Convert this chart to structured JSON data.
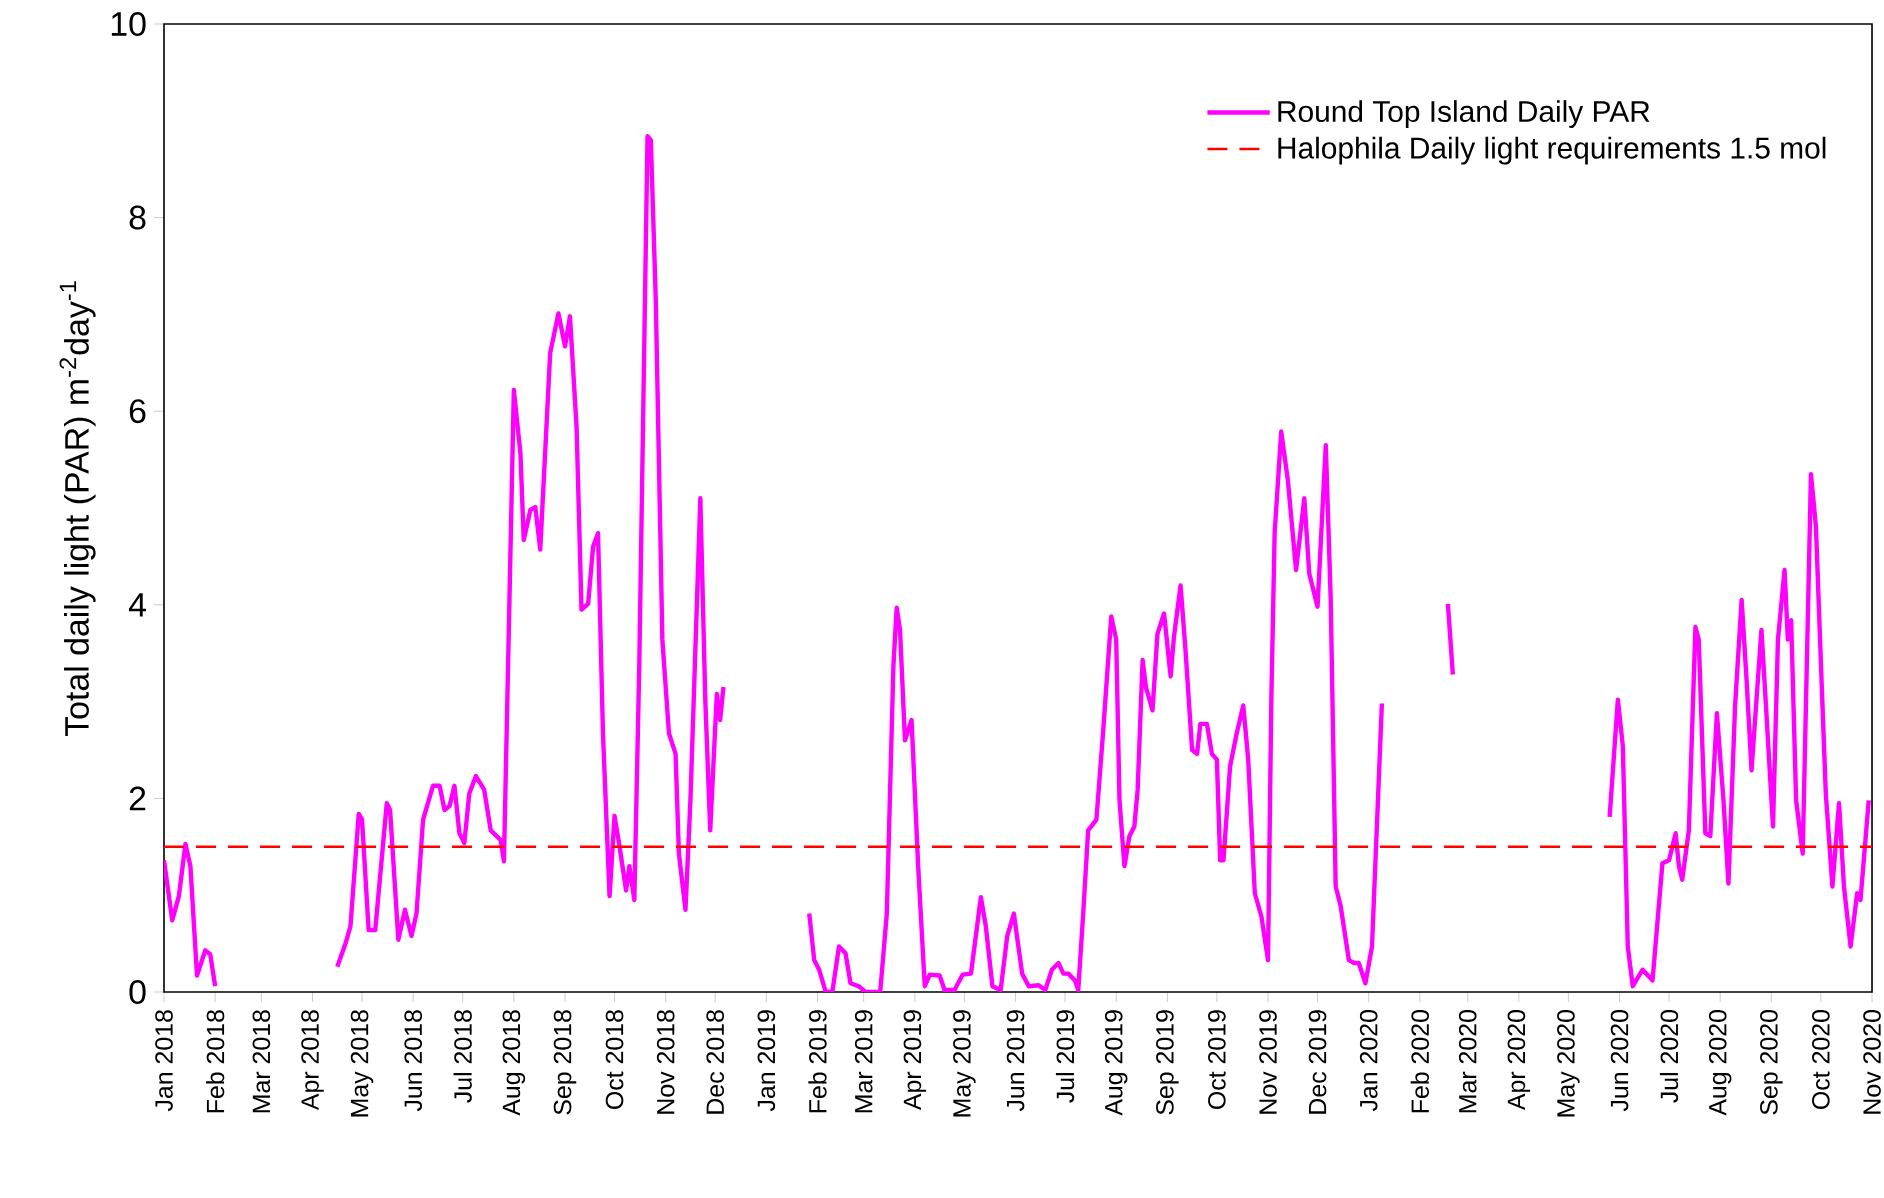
{
  "chart_data": {
    "type": "line",
    "ylabel": "Total daily light (PAR) m$^{-2}$day$^{-1}$",
    "xlim": [
      "2018-01-01",
      "2020-11-01"
    ],
    "xticks": [
      {
        "value": "2018-01-01",
        "label": "Jan 2018"
      },
      {
        "value": "2018-02-01",
        "label": "Feb 2018"
      },
      {
        "value": "2018-03-01",
        "label": "Mar 2018"
      },
      {
        "value": "2018-04-01",
        "label": "Apr 2018"
      },
      {
        "value": "2018-05-01",
        "label": "May 2018"
      },
      {
        "value": "2018-06-01",
        "label": "Jun 2018"
      },
      {
        "value": "2018-07-01",
        "label": "Jul 2018"
      },
      {
        "value": "2018-08-01",
        "label": "Aug 2018"
      },
      {
        "value": "2018-09-01",
        "label": "Sep 2018"
      },
      {
        "value": "2018-10-01",
        "label": "Oct 2018"
      },
      {
        "value": "2018-11-01",
        "label": "Nov 2018"
      },
      {
        "value": "2018-12-01",
        "label": "Dec 2018"
      },
      {
        "value": "2019-01-01",
        "label": "Jan 2019"
      },
      {
        "value": "2019-02-01",
        "label": "Feb 2019"
      },
      {
        "value": "2019-03-01",
        "label": "Mar 2019"
      },
      {
        "value": "2019-04-01",
        "label": "Apr 2019"
      },
      {
        "value": "2019-05-01",
        "label": "May 2019"
      },
      {
        "value": "2019-06-01",
        "label": "Jun 2019"
      },
      {
        "value": "2019-07-01",
        "label": "Jul 2019"
      },
      {
        "value": "2019-08-01",
        "label": "Aug 2019"
      },
      {
        "value": "2019-09-01",
        "label": "Sep 2019"
      },
      {
        "value": "2019-10-01",
        "label": "Oct 2019"
      },
      {
        "value": "2019-11-01",
        "label": "Nov 2019"
      },
      {
        "value": "2019-12-01",
        "label": "Dec 2019"
      },
      {
        "value": "2020-01-01",
        "label": "Jan 2020"
      },
      {
        "value": "2020-02-01",
        "label": "Feb 2020"
      },
      {
        "value": "2020-03-01",
        "label": "Mar 2020"
      },
      {
        "value": "2020-04-01",
        "label": "Apr 2020"
      },
      {
        "value": "2020-05-01",
        "label": "May 2020"
      },
      {
        "value": "2020-06-01",
        "label": "Jun 2020"
      },
      {
        "value": "2020-07-01",
        "label": "Jul 2020"
      },
      {
        "value": "2020-08-01",
        "label": "Aug 2020"
      },
      {
        "value": "2020-09-01",
        "label": "Sep 2020"
      },
      {
        "value": "2020-10-01",
        "label": "Oct 2020"
      },
      {
        "value": "2020-11-01",
        "label": "Nov 2020"
      }
    ],
    "ylim": [
      0,
      10
    ],
    "yticks": [
      0,
      2,
      4,
      6,
      8,
      10
    ],
    "legend": "top right",
    "marker": "none",
    "ref_lines": [
      {
        "axis": "y",
        "value": 1.5,
        "label": "Halophila Daily light requirements 1.5 mol",
        "color": "#ff0000",
        "line_style": "dashed"
      }
    ],
    "series": [
      {
        "name": "Round Top Island Daily PAR",
        "color": "#ff00ff",
        "line_style": "solid",
        "x": [
          "2018-01-01",
          "2018-01-06",
          "2018-01-10",
          "2018-01-14",
          "2018-01-17",
          "2018-01-21",
          "2018-01-26",
          "2018-01-29",
          "2018-02-01",
          "2018-03-01",
          "2018-04-16",
          "2018-04-21",
          "2018-04-24",
          "2018-04-29",
          "2018-05-01",
          "2018-05-05",
          "2018-05-09",
          "2018-05-16",
          "2018-05-18",
          "2018-05-23",
          "2018-05-27",
          "2018-05-31",
          "2018-06-03",
          "2018-06-07",
          "2018-06-13",
          "2018-06-17",
          "2018-06-20",
          "2018-06-23",
          "2018-06-26",
          "2018-06-29",
          "2018-07-02",
          "2018-07-05",
          "2018-07-09",
          "2018-07-14",
          "2018-07-18",
          "2018-07-24",
          "2018-07-26",
          "2018-08-01",
          "2018-08-05",
          "2018-08-07",
          "2018-08-11",
          "2018-08-14",
          "2018-08-17",
          "2018-08-23",
          "2018-08-28",
          "2018-09-01",
          "2018-09-04",
          "2018-09-08",
          "2018-09-11",
          "2018-09-15",
          "2018-09-18",
          "2018-09-21",
          "2018-09-24",
          "2018-09-28",
          "2018-10-01",
          "2018-10-04",
          "2018-10-08",
          "2018-10-10",
          "2018-10-13",
          "2018-10-16",
          "2018-10-21",
          "2018-10-23",
          "2018-10-26",
          "2018-10-30",
          "2018-11-03",
          "2018-11-07",
          "2018-11-09",
          "2018-11-13",
          "2018-11-16",
          "2018-11-22",
          "2018-11-25",
          "2018-11-28",
          "2018-12-02",
          "2018-12-04",
          "2018-12-06",
          "2019-01-01",
          "2019-01-27",
          "2019-01-30",
          "2019-02-02",
          "2019-02-06",
          "2019-02-10",
          "2019-02-14",
          "2019-02-18",
          "2019-02-21",
          "2019-02-26",
          "2019-03-02",
          "2019-03-11",
          "2019-03-15",
          "2019-03-19",
          "2019-03-21",
          "2019-03-23",
          "2019-03-26",
          "2019-03-30",
          "2019-04-03",
          "2019-04-07",
          "2019-04-10",
          "2019-04-16",
          "2019-04-19",
          "2019-04-25",
          "2019-04-30",
          "2019-05-05",
          "2019-05-11",
          "2019-05-14",
          "2019-05-18",
          "2019-05-23",
          "2019-05-27",
          "2019-05-31",
          "2019-06-05",
          "2019-06-09",
          "2019-06-15",
          "2019-06-19",
          "2019-06-23",
          "2019-06-27",
          "2019-06-30",
          "2019-07-03",
          "2019-07-07",
          "2019-07-09",
          "2019-07-12",
          "2019-07-15",
          "2019-07-20",
          "2019-07-24",
          "2019-07-29",
          "2019-08-01",
          "2019-08-03",
          "2019-08-06",
          "2019-08-09",
          "2019-08-12",
          "2019-08-14",
          "2019-08-17",
          "2019-08-19",
          "2019-08-23",
          "2019-08-26",
          "2019-08-30",
          "2019-09-03",
          "2019-09-05",
          "2019-09-09",
          "2019-09-12",
          "2019-09-16",
          "2019-09-19",
          "2019-09-21",
          "2019-09-25",
          "2019-09-28",
          "2019-10-01",
          "2019-10-03",
          "2019-10-05",
          "2019-10-09",
          "2019-10-13",
          "2019-10-17",
          "2019-10-20",
          "2019-10-24",
          "2019-10-28",
          "2019-11-01",
          "2019-11-03",
          "2019-11-05",
          "2019-11-09",
          "2019-11-13",
          "2019-11-18",
          "2019-11-23",
          "2019-11-26",
          "2019-12-01",
          "2019-12-06",
          "2019-12-09",
          "2019-12-12",
          "2019-12-15",
          "2019-12-20",
          "2019-12-23",
          "2019-12-26",
          "2019-12-30",
          "2020-01-03",
          "2020-01-09",
          "2020-02-01",
          "2020-02-18",
          "2020-02-21",
          "2020-04-01",
          "2020-05-26",
          "2020-05-31",
          "2020-06-03",
          "2020-06-06",
          "2020-06-09",
          "2020-06-15",
          "2020-06-21",
          "2020-06-27",
          "2020-07-01",
          "2020-07-05",
          "2020-07-07",
          "2020-07-09",
          "2020-07-13",
          "2020-07-17",
          "2020-07-19",
          "2020-07-23",
          "2020-07-26",
          "2020-07-30",
          "2020-08-03",
          "2020-08-06",
          "2020-08-10",
          "2020-08-14",
          "2020-08-17",
          "2020-08-20",
          "2020-08-23",
          "2020-08-26",
          "2020-08-29",
          "2020-09-02",
          "2020-09-05",
          "2020-09-09",
          "2020-09-11",
          "2020-09-13",
          "2020-09-16",
          "2020-09-20",
          "2020-09-25",
          "2020-09-28",
          "2020-10-02",
          "2020-10-04",
          "2020-10-08",
          "2020-10-12",
          "2020-10-15",
          "2020-10-19",
          "2020-10-23",
          "2020-10-25",
          "2020-10-27",
          "2020-10-30"
        ],
        "values": [
          1.36,
          0.74,
          0.99,
          1.53,
          1.3,
          0.17,
          0.43,
          0.39,
          0.06,
          null,
          0.26,
          0.5,
          0.68,
          1.84,
          1.78,
          0.64,
          0.64,
          1.95,
          1.88,
          0.54,
          0.85,
          0.58,
          0.81,
          1.78,
          2.13,
          2.13,
          1.88,
          1.92,
          2.13,
          1.64,
          1.54,
          2.05,
          2.23,
          2.09,
          1.67,
          1.57,
          1.35,
          6.22,
          5.56,
          4.67,
          4.98,
          5.01,
          4.57,
          6.6,
          7.01,
          6.67,
          6.98,
          5.84,
          3.95,
          4.01,
          4.6,
          4.74,
          2.67,
          0.99,
          1.82,
          1.51,
          1.05,
          1.3,
          0.95,
          3.37,
          8.84,
          8.8,
          7.15,
          3.64,
          2.67,
          2.46,
          1.43,
          0.85,
          1.98,
          5.1,
          3.02,
          1.67,
          3.08,
          2.81,
          3.15,
          null,
          0.81,
          0.33,
          0.23,
          0,
          0,
          0.47,
          0.4,
          0.09,
          0.06,
          0,
          0,
          0.81,
          3.37,
          3.97,
          3.74,
          2.6,
          2.81,
          1.3,
          0.06,
          0.18,
          0.17,
          0.02,
          0.02,
          0.18,
          0.19,
          0.98,
          0.68,
          0.06,
          0.02,
          0.58,
          0.81,
          0.19,
          0.06,
          0.07,
          0.02,
          0.23,
          0.3,
          0.19,
          0.19,
          0.12,
          0.02,
          0.81,
          1.67,
          1.78,
          2.67,
          3.88,
          3.64,
          1.98,
          1.3,
          1.61,
          1.71,
          2.09,
          3.43,
          3.15,
          2.91,
          3.7,
          3.91,
          3.26,
          3.67,
          4.2,
          3.53,
          2.5,
          2.46,
          2.77,
          2.77,
          2.46,
          2.4,
          1.36,
          1.36,
          2.33,
          2.67,
          2.96,
          2.4,
          1.02,
          0.78,
          0.33,
          3.02,
          4.74,
          5.79,
          5.29,
          4.36,
          5.1,
          4.32,
          3.98,
          5.65,
          4.05,
          1.09,
          0.89,
          0.33,
          0.3,
          0.3,
          0.09,
          0.47,
          2.98,
          null,
          4.01,
          3.28,
          null,
          1.81,
          3.02,
          2.54,
          0.47,
          0.06,
          0.23,
          0.12,
          1.33,
          1.36,
          1.64,
          1.3,
          1.16,
          1.67,
          3.77,
          3.64,
          1.64,
          1.61,
          2.88,
          1.98,
          1.12,
          2.95,
          4.05,
          3.22,
          2.29,
          3.02,
          3.74,
          2.88,
          1.71,
          3.64,
          4.36,
          3.64,
          3.84,
          1.98,
          1.43,
          5.35,
          4.81,
          2.95,
          2.05,
          1.09,
          1.95,
          1.09,
          0.47,
          1.02,
          0.95,
          1.36,
          1.98
        ]
      }
    ]
  }
}
